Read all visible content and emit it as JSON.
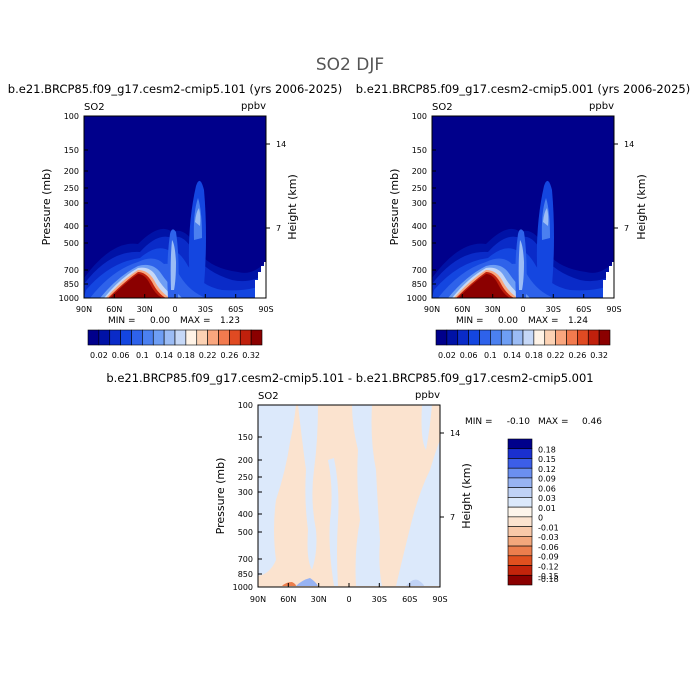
{
  "figure_title": "SO2 DJF",
  "colors": {
    "field": [
      "#00008b",
      "#0012a6",
      "#0a2bc8",
      "#1446e0",
      "#2e62ea",
      "#4b80f0",
      "#6e9ef4",
      "#9bbcf5",
      "#c6d8f7",
      "#fff3e6",
      "#fcd2b4",
      "#f9a67e",
      "#f27a4e",
      "#e04a22",
      "#c0200c",
      "#8b0000"
    ],
    "diff": [
      "#00008b",
      "#1a30d0",
      "#3c5ee8",
      "#6b8ff0",
      "#97b3f3",
      "#c0d2f5",
      "#dce9fb",
      "#fdf5eb",
      "#fbe3cf",
      "#f8c8a8",
      "#f3a77c",
      "#ec7e4d",
      "#e0501f",
      "#c3240b",
      "#8b0000"
    ]
  },
  "chart_data": [
    {
      "type": "heatmap",
      "title": "b.e21.BRCP85.f09_g17.cesm2-cmip5.101 (yrs 2006-2025)",
      "variable_label": "SO2",
      "units_label": "ppbv",
      "ylabel": "Pressure (mb)",
      "ylabel_right": "Height (km)",
      "x_ticks": [
        "90N",
        "60N",
        "30N",
        "0",
        "30S",
        "60S",
        "90S"
      ],
      "y_ticks": [
        "100",
        "150",
        "200",
        "250",
        "300",
        "400",
        "500",
        "700",
        "850",
        "1000"
      ],
      "y_ticks_right": [
        "14",
        "7"
      ],
      "stats": {
        "min_label": "MIN =",
        "min": "0.00",
        "max_label": "MAX =",
        "max": "1.23"
      },
      "colorbar_levels": [
        "0.02",
        "0.06",
        "0.1",
        "0.14",
        "0.18",
        "0.22",
        "0.26",
        "0.32"
      ],
      "ylim": [
        1000,
        100
      ]
    },
    {
      "type": "heatmap",
      "title": "b.e21.BRCP85.f09_g17.cesm2-cmip5.001 (yrs 2006-2025)",
      "variable_label": "SO2",
      "units_label": "ppbv",
      "ylabel": "Pressure (mb)",
      "ylabel_right": "Height (km)",
      "x_ticks": [
        "90N",
        "60N",
        "30N",
        "0",
        "30S",
        "60S",
        "90S"
      ],
      "y_ticks": [
        "100",
        "150",
        "200",
        "250",
        "300",
        "400",
        "500",
        "700",
        "850",
        "1000"
      ],
      "y_ticks_right": [
        "14",
        "7"
      ],
      "stats": {
        "min_label": "MIN =",
        "min": "0.00",
        "max_label": "MAX =",
        "max": "1.24"
      },
      "colorbar_levels": [
        "0.02",
        "0.06",
        "0.1",
        "0.14",
        "0.18",
        "0.22",
        "0.26",
        "0.32"
      ],
      "ylim": [
        1000,
        100
      ]
    },
    {
      "type": "heatmap",
      "title": "b.e21.BRCP85.f09_g17.cesm2-cmip5.101 - b.e21.BRCP85.f09_g17.cesm2-cmip5.001",
      "variable_label": "SO2",
      "units_label": "ppbv",
      "ylabel": "Pressure (mb)",
      "ylabel_right": "Height (km)",
      "x_ticks": [
        "90N",
        "60N",
        "30N",
        "0",
        "30S",
        "60S",
        "90S"
      ],
      "y_ticks": [
        "100",
        "150",
        "200",
        "250",
        "300",
        "400",
        "500",
        "700",
        "850",
        "1000"
      ],
      "y_ticks_right": [
        "14",
        "7"
      ],
      "stats": {
        "min_label": "MIN =",
        "min": "-0.10",
        "max_label": "MAX =",
        "max": "0.46"
      },
      "colorbar_levels": [
        "0.18",
        "0.15",
        "0.12",
        "0.09",
        "0.06",
        "0.03",
        "0.01",
        "0",
        "-0.01",
        "-0.03",
        "-0.06",
        "-0.09",
        "-0.12",
        "-0.15",
        "-0.18"
      ],
      "ylim": [
        1000,
        100
      ]
    }
  ]
}
